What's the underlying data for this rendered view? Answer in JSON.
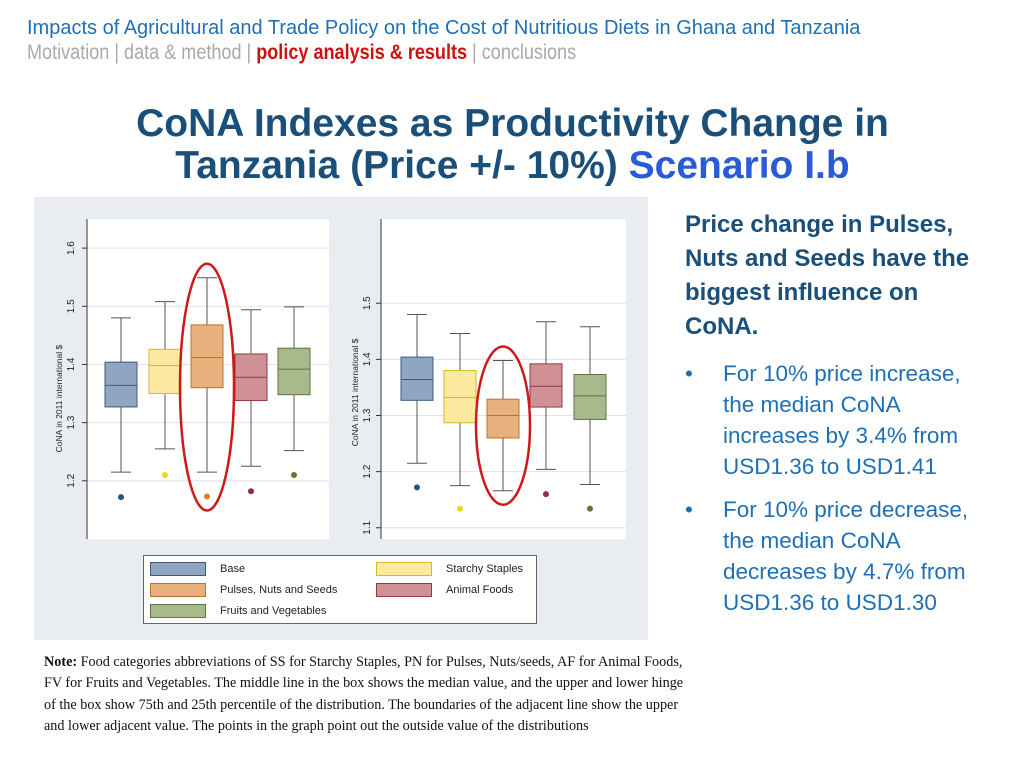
{
  "header": {
    "title": "Impacts of Agricultural and Trade Policy on the Cost of Nutritious Diets in Ghana and Tanzania",
    "nav": [
      "Motivation",
      "data & method",
      "policy analysis & results",
      "conclusions"
    ],
    "nav_separator": " | ",
    "active_nav_index": 2
  },
  "slide": {
    "title_main": "CoNA Indexes as Productivity Change in Tanzania (Price +/- 10%)",
    "title_accent": "Scenario I.b"
  },
  "side_panel": {
    "heading": "Price change in Pulses, Nuts and Seeds have the biggest influence on CoNA.",
    "bullet_marker": "•",
    "bullets": [
      "For 10% price increase, the median CoNA increases by 3.4% from USD1.36 to USD1.41",
      "For 10% price decrease, the median CoNA decreases by 4.7% from USD1.36 to USD1.30"
    ]
  },
  "note": {
    "label": "Note:",
    "text": "Food categories abbreviations of SS for Starchy Staples, PN for Pulses, Nuts/seeds, AF for Animal Foods, FV for Fruits and Vegetables. The middle line in the box shows the median value, and the upper and lower hinge of the box show 75th and 25th percentile of the distribution. The boundaries of the adjacent line show the upper and lower adjacent value. The points in the graph point out the outside value of the distributions"
  },
  "colors": {
    "Base": {
      "fill": "#8fa6c2",
      "stroke": "#3d5a7a"
    },
    "Starchy Staples": {
      "fill": "#fbe9a0",
      "stroke": "#d9b62a",
      "dot": "#f2d21a"
    },
    "Pulses, Nuts and Seeds": {
      "fill": "#e8b07d",
      "stroke": "#b87431"
    },
    "Animal Foods": {
      "fill": "#cf9196",
      "stroke": "#8e3b45"
    },
    "Fruits and Vegetables": {
      "fill": "#a8b98c",
      "stroke": "#5e7440"
    },
    "highlight": "#cc1a1a",
    "base_dot": "#2c4f86",
    "pulses_dot": "#d9801c",
    "animal_dot": "#8e2f3a",
    "fv_dot": "#5b7a2d"
  },
  "legend": {
    "items": [
      "Base",
      "Starchy Staples",
      "Pulses, Nuts and Seeds",
      "Animal Foods",
      "Fruits and Vegetables"
    ]
  },
  "chart_data": [
    {
      "type": "box",
      "ylabel": "CoNA in 2011 international $",
      "ylim": [
        1.1,
        1.6
      ],
      "yticks": [
        1.2,
        1.3,
        1.4,
        1.5,
        1.6
      ],
      "series": [
        {
          "name": "Base",
          "whisker_low": 1.215,
          "q1": 1.327,
          "median": 1.364,
          "q3": 1.404,
          "whisker_high": 1.48,
          "outliers": [
            1.172
          ]
        },
        {
          "name": "Starchy Staples",
          "whisker_low": 1.255,
          "q1": 1.35,
          "median": 1.398,
          "q3": 1.426,
          "whisker_high": 1.508,
          "outliers": [
            1.21
          ]
        },
        {
          "name": "Pulses, Nuts and Seeds",
          "whisker_low": 1.215,
          "q1": 1.36,
          "median": 1.412,
          "q3": 1.468,
          "whisker_high": 1.549,
          "outliers": [
            1.173
          ]
        },
        {
          "name": "Animal Foods",
          "whisker_low": 1.225,
          "q1": 1.338,
          "median": 1.378,
          "q3": 1.418,
          "whisker_high": 1.494,
          "outliers": [
            1.182
          ]
        },
        {
          "name": "Fruits and Vegetables",
          "whisker_low": 1.252,
          "q1": 1.348,
          "median": 1.392,
          "q3": 1.428,
          "whisker_high": 1.499,
          "outliers": [
            1.21
          ]
        }
      ],
      "highlight_index": 2
    },
    {
      "type": "box",
      "ylabel": "CoNA in 2011 international $",
      "ylim": [
        1.08,
        1.6
      ],
      "yticks": [
        1.1,
        1.2,
        1.3,
        1.4,
        1.5
      ],
      "series": [
        {
          "name": "Base",
          "whisker_low": 1.215,
          "q1": 1.327,
          "median": 1.364,
          "q3": 1.404,
          "whisker_high": 1.48,
          "outliers": [
            1.172
          ]
        },
        {
          "name": "Starchy Staples",
          "whisker_low": 1.175,
          "q1": 1.287,
          "median": 1.332,
          "q3": 1.38,
          "whisker_high": 1.446,
          "outliers": [
            1.134
          ]
        },
        {
          "name": "Pulses, Nuts and Seeds",
          "whisker_low": 1.166,
          "q1": 1.26,
          "median": 1.3,
          "q3": 1.329,
          "whisker_high": 1.398,
          "outliers": []
        },
        {
          "name": "Animal Foods",
          "whisker_low": 1.204,
          "q1": 1.315,
          "median": 1.352,
          "q3": 1.392,
          "whisker_high": 1.467,
          "outliers": [
            1.16
          ]
        },
        {
          "name": "Fruits and Vegetables",
          "whisker_low": 1.177,
          "q1": 1.293,
          "median": 1.335,
          "q3": 1.373,
          "whisker_high": 1.458,
          "outliers": [
            1.134
          ]
        }
      ],
      "highlight_index": 2
    }
  ]
}
